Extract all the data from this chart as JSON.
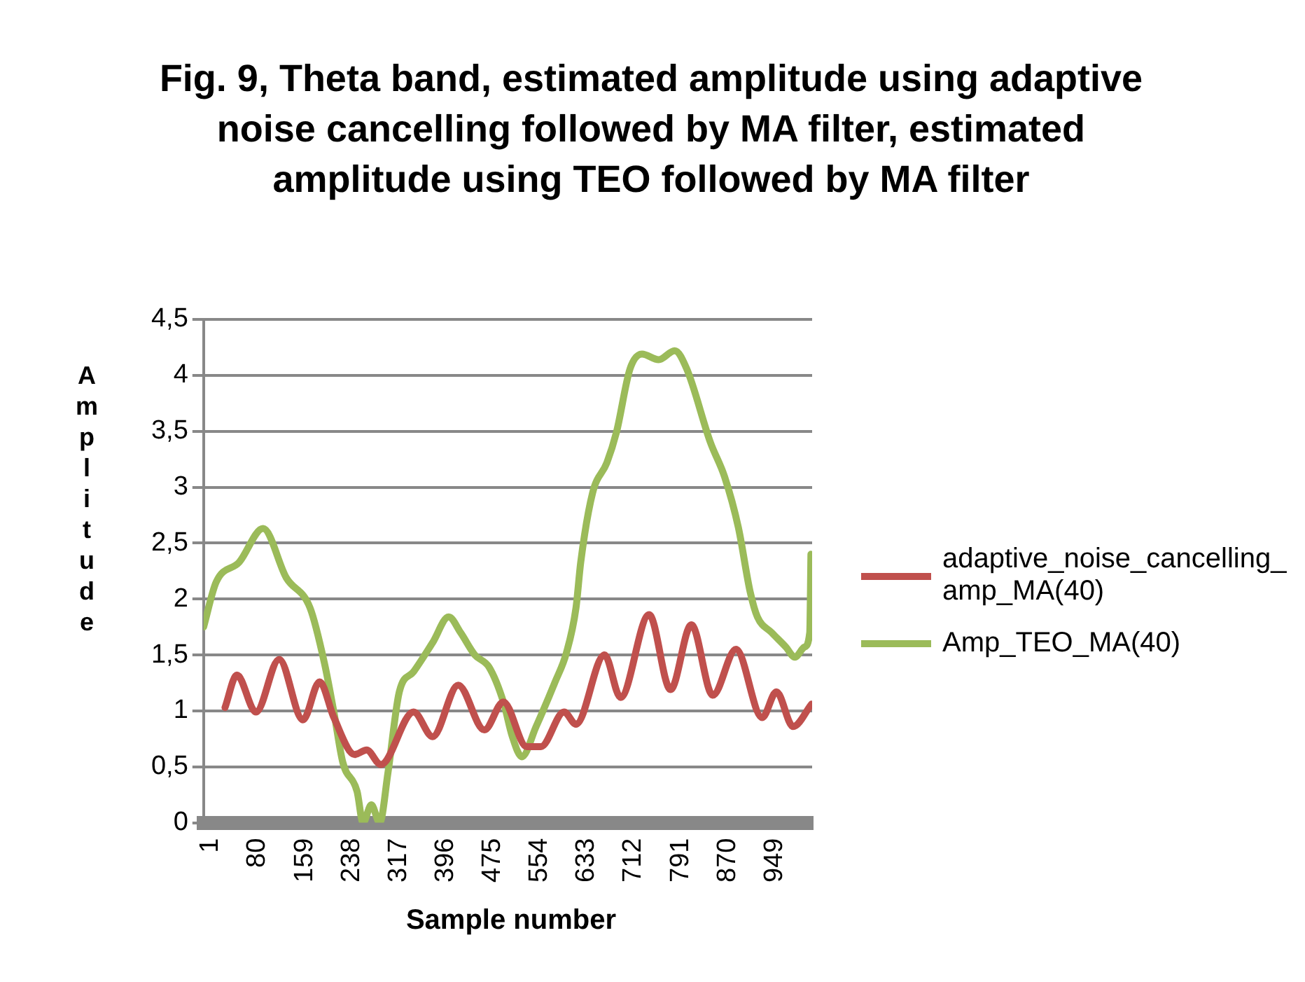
{
  "chart_data": {
    "type": "line",
    "title": "Fig. 9, Theta band, estimated amplitude using adaptive noise cancelling followed by MA filter, estimated amplitude using TEO followed by MA filter",
    "xlabel": "Sample number",
    "ylabel": "Amplitude",
    "xlim": [
      1,
      1024
    ],
    "xticks": [
      1,
      80,
      159,
      238,
      317,
      396,
      475,
      554,
      633,
      712,
      791,
      870,
      949
    ],
    "ylim": [
      0,
      4.5
    ],
    "yticks": [
      {
        "value": 0,
        "label": "0"
      },
      {
        "value": 0.5,
        "label": "0,5"
      },
      {
        "value": 1,
        "label": "1"
      },
      {
        "value": 1.5,
        "label": "1,5"
      },
      {
        "value": 2,
        "label": "2"
      },
      {
        "value": 2.5,
        "label": "2,5"
      },
      {
        "value": 3,
        "label": "3"
      },
      {
        "value": 3.5,
        "label": "3,5"
      },
      {
        "value": 4,
        "label": "4"
      },
      {
        "value": 4.5,
        "label": "4,5"
      }
    ],
    "grid": "y",
    "legend": "right",
    "marker": "none",
    "series": [
      {
        "name": "adaptive_noise_cancelling_ amp_MA(40)",
        "color": "#c0504d",
        "x": [
          37,
          57,
          89,
          128,
          168,
          196,
          220,
          255,
          275,
          299,
          354,
          386,
          429,
          473,
          505,
          544,
          568,
          607,
          627,
          675,
          702,
          750,
          786,
          821,
          857,
          896,
          940,
          964,
          992,
          1023
        ],
        "values": [
          1.03,
          1.32,
          0.99,
          1.46,
          0.92,
          1.26,
          0.94,
          0.61,
          0.65,
          0.52,
          0.99,
          0.77,
          1.23,
          0.83,
          1.08,
          0.68,
          0.68,
          0.99,
          0.88,
          1.5,
          1.12,
          1.86,
          1.19,
          1.77,
          1.14,
          1.55,
          0.94,
          1.17,
          0.86,
          1.06
        ]
      },
      {
        "name": "Amp_TEO_MA(40)",
        "color": "#9bbb59",
        "x": [
          1,
          22,
          61,
          101,
          140,
          180,
          204,
          220,
          235,
          259,
          269,
          283,
          297,
          311,
          330,
          354,
          386,
          413,
          433,
          457,
          481,
          505,
          520,
          536,
          560,
          592,
          611,
          627,
          635,
          655,
          679,
          695,
          718,
          738,
          766,
          793,
          813,
          853,
          877,
          900,
          920,
          932,
          956,
          980,
          995,
          1011,
          1020,
          1022
        ],
        "values": [
          1.75,
          2.15,
          2.33,
          2.63,
          2.19,
          1.92,
          1.43,
          0.99,
          0.54,
          0.28,
          0,
          0.16,
          0,
          0.45,
          1.17,
          1.35,
          1.61,
          1.84,
          1.7,
          1.5,
          1.39,
          1.08,
          0.77,
          0.59,
          0.86,
          1.26,
          1.52,
          1.92,
          2.33,
          2.95,
          3.22,
          3.49,
          4.06,
          4.19,
          4.14,
          4.22,
          4.06,
          3.4,
          3.09,
          2.64,
          2.06,
          1.84,
          1.7,
          1.57,
          1.48,
          1.57,
          1.7,
          2.4
        ]
      }
    ]
  }
}
